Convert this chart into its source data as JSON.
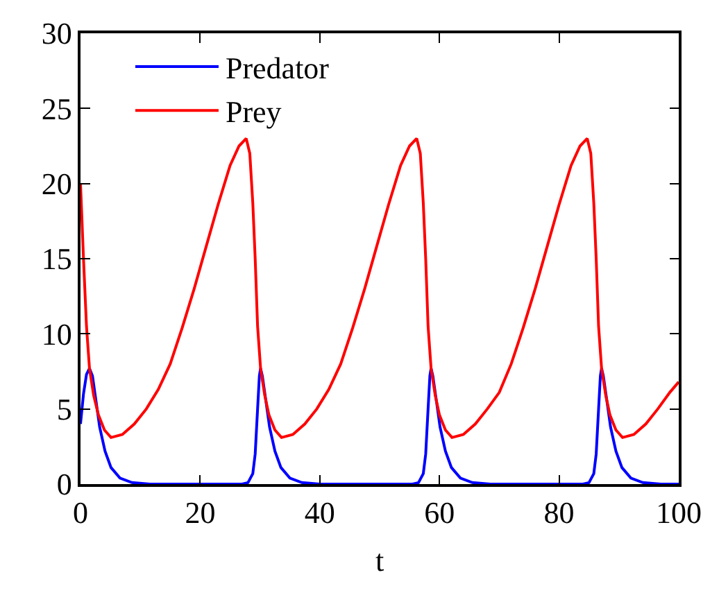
{
  "chart_data": {
    "type": "line",
    "xlabel": "t",
    "xlim": [
      0,
      100
    ],
    "xticks": [
      0,
      20,
      40,
      60,
      80,
      100
    ],
    "ylim": [
      0,
      30
    ],
    "yticks": [
      0,
      5,
      10,
      15,
      20,
      25,
      30
    ],
    "legend": "top left",
    "marker": "none",
    "line_style": "solid",
    "series": [
      {
        "name": "Predator",
        "color": "#0000ff",
        "x": [
          0,
          0.5,
          1,
          1.5,
          2,
          2.6,
          3.2,
          4.1,
          5.1,
          6.6,
          8.6,
          11.6,
          18,
          24,
          27,
          28,
          28.8,
          29.2,
          29.6,
          29.9,
          30.1,
          30.4,
          31,
          31.6,
          32.5,
          33.5,
          35,
          37,
          40,
          46,
          52,
          55.5,
          56.5,
          57.3,
          57.7,
          58.1,
          58.4,
          58.6,
          58.9,
          59.5,
          60.1,
          61,
          62,
          63.5,
          65.5,
          68.5,
          74,
          80,
          84,
          85,
          85.8,
          86.2,
          86.6,
          86.9,
          87.1,
          87.4,
          88,
          88.6,
          89.5,
          90.5,
          92,
          94,
          97,
          100
        ],
        "values": [
          4.0,
          6.0,
          7.3,
          7.7,
          7.2,
          5.5,
          3.8,
          2.2,
          1.1,
          0.4,
          0.1,
          0,
          0,
          0,
          0,
          0.1,
          0.7,
          2.0,
          5.0,
          7.2,
          7.7,
          7.2,
          5.5,
          3.8,
          2.2,
          1.1,
          0.4,
          0.1,
          0,
          0,
          0,
          0,
          0.1,
          0.7,
          2.0,
          5.0,
          7.2,
          7.7,
          7.2,
          5.5,
          3.8,
          2.2,
          1.1,
          0.4,
          0.1,
          0,
          0,
          0,
          0,
          0.1,
          0.7,
          2.0,
          5.0,
          7.2,
          7.7,
          7.2,
          5.5,
          3.8,
          2.2,
          1.1,
          0.4,
          0.1,
          0,
          0
        ]
      },
      {
        "name": "Prey",
        "color": "#ff0000",
        "x": [
          0,
          0.5,
          1,
          1.5,
          2.2,
          3,
          4,
          5.1,
          7,
          9,
          11,
          13,
          15,
          17,
          19,
          21,
          23,
          25,
          26.5,
          27.7,
          28.3,
          28.8,
          29.2,
          29.6,
          30.1,
          30.8,
          31.5,
          32.5,
          33.6,
          35.5,
          37.5,
          39.5,
          41.5,
          43.5,
          45.5,
          47.5,
          49.5,
          51.5,
          53.5,
          55,
          56.2,
          56.8,
          57.3,
          57.7,
          58.1,
          58.6,
          59.3,
          60,
          61,
          62.1,
          64,
          66,
          68,
          70,
          72,
          74,
          76,
          78,
          80,
          82,
          83.5,
          84.7,
          85.3,
          85.8,
          86.2,
          86.6,
          87.1,
          87.8,
          88.5,
          89.5,
          90.6,
          92.5,
          94.5,
          96.5,
          98.5,
          100
        ],
        "values": [
          20,
          15,
          10.5,
          7.7,
          5.9,
          4.6,
          3.6,
          3.1,
          3.3,
          4.0,
          5.0,
          6.3,
          8.0,
          10.4,
          13.0,
          15.8,
          18.6,
          21.2,
          22.5,
          23.0,
          22.0,
          18.7,
          15.0,
          10.5,
          7.7,
          5.9,
          4.6,
          3.6,
          3.1,
          3.3,
          4.0,
          5.0,
          6.3,
          8.0,
          10.4,
          13.0,
          15.8,
          18.6,
          21.2,
          22.5,
          23.0,
          22.0,
          18.7,
          15.0,
          10.5,
          7.7,
          5.9,
          4.6,
          3.6,
          3.1,
          3.3,
          4.0,
          5.0,
          6.1,
          8.0,
          10.4,
          13.0,
          15.8,
          18.6,
          21.2,
          22.5,
          23.0,
          22.0,
          18.7,
          15.0,
          10.5,
          7.7,
          5.9,
          4.6,
          3.6,
          3.1,
          3.3,
          4.0,
          5.0,
          6.1,
          6.8
        ]
      }
    ]
  }
}
